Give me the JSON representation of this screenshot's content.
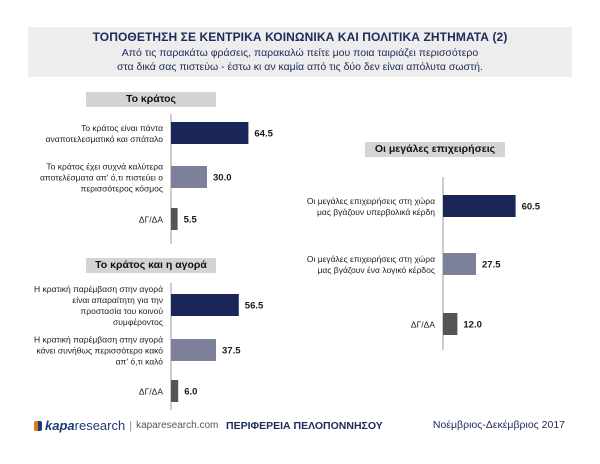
{
  "header": {
    "title": "ΤΟΠΟΘΕΤΗΣΗ ΣΕ ΚΕΝΤΡΙΚΑ ΚΟΙΝΩΝΙΚΑ ΚΑΙ ΠΟΛΙΤΙΚΑ ΖΗΤΗΜΑΤΑ (2)",
    "subtitle_line1": "Από τις παρακάτω φράσεις, παρακαλώ πείτε μου ποια ταιριάζει περισσότερο",
    "subtitle_line2": "στα δικά σας πιστεύω - έστω κι αν καμία από τις δύο δεν είναι απόλυτα σωστή."
  },
  "colors": {
    "navy": "#1a2558",
    "slate": "#7c809a",
    "gray": "#555555"
  },
  "chart_data": [
    {
      "type": "bar",
      "title": "Το κράτος",
      "categories": [
        [
          "Το κράτος είναι πάντα",
          "αναποτελεσματικό και σπάταλο"
        ],
        [
          "Το κράτος έχει συχνά καλύτερα",
          "αποτελέσματα απ' ό,τι πιστεύει ο",
          "περισσότερος κόσμος"
        ],
        [
          "ΔΓ/ΔΑ"
        ]
      ],
      "values": [
        64.5,
        30.0,
        5.5
      ],
      "value_labels": [
        "64.5",
        "30.0",
        "5.5"
      ],
      "bar_colors": [
        "navy",
        "slate",
        "gray"
      ]
    },
    {
      "type": "bar",
      "title": "Το κράτος και η αγορά",
      "categories": [
        [
          "Η κρατική παρέμβαση στην αγορά",
          "είναι απαραίτητη για την",
          "προστασία του κοινού",
          "συμφέροντος"
        ],
        [
          "Η κρατική παρέμβαση στην αγορά",
          "κάνει συνήθως περισσότερο κακό",
          "απ' ό,τι καλό"
        ],
        [
          "ΔΓ/ΔΑ"
        ]
      ],
      "values": [
        56.5,
        37.5,
        6.0
      ],
      "value_labels": [
        "56.5",
        "37.5",
        "6.0"
      ],
      "bar_colors": [
        "navy",
        "slate",
        "gray"
      ]
    },
    {
      "type": "bar",
      "title": "Οι μεγάλες επιχειρήσεις",
      "categories": [
        [
          "Οι μεγάλες επιχειρήσεις στη χώρα",
          "μας βγάζουν υπερβολικά κέρδη"
        ],
        [
          "Οι μεγάλες επιχειρήσεις στη χώρα",
          "μας βγάζουν ένα λογικό κέρδος"
        ],
        [
          "ΔΓ/ΔΑ"
        ]
      ],
      "values": [
        60.5,
        27.5,
        12.0
      ],
      "value_labels": [
        "60.5",
        "27.5",
        "12.0"
      ],
      "bar_colors": [
        "navy",
        "slate",
        "gray"
      ]
    }
  ],
  "footer": {
    "brand_kapa": "kapa",
    "brand_research": "research",
    "url": "kaparesearch.com",
    "region": "ΠΕΡΙΦΕΡΕΙΑ ΠΕΛΟΠΟΝΝΗΣΟΥ",
    "date": "Νοέμβριος-Δεκέμβριος 2017"
  }
}
